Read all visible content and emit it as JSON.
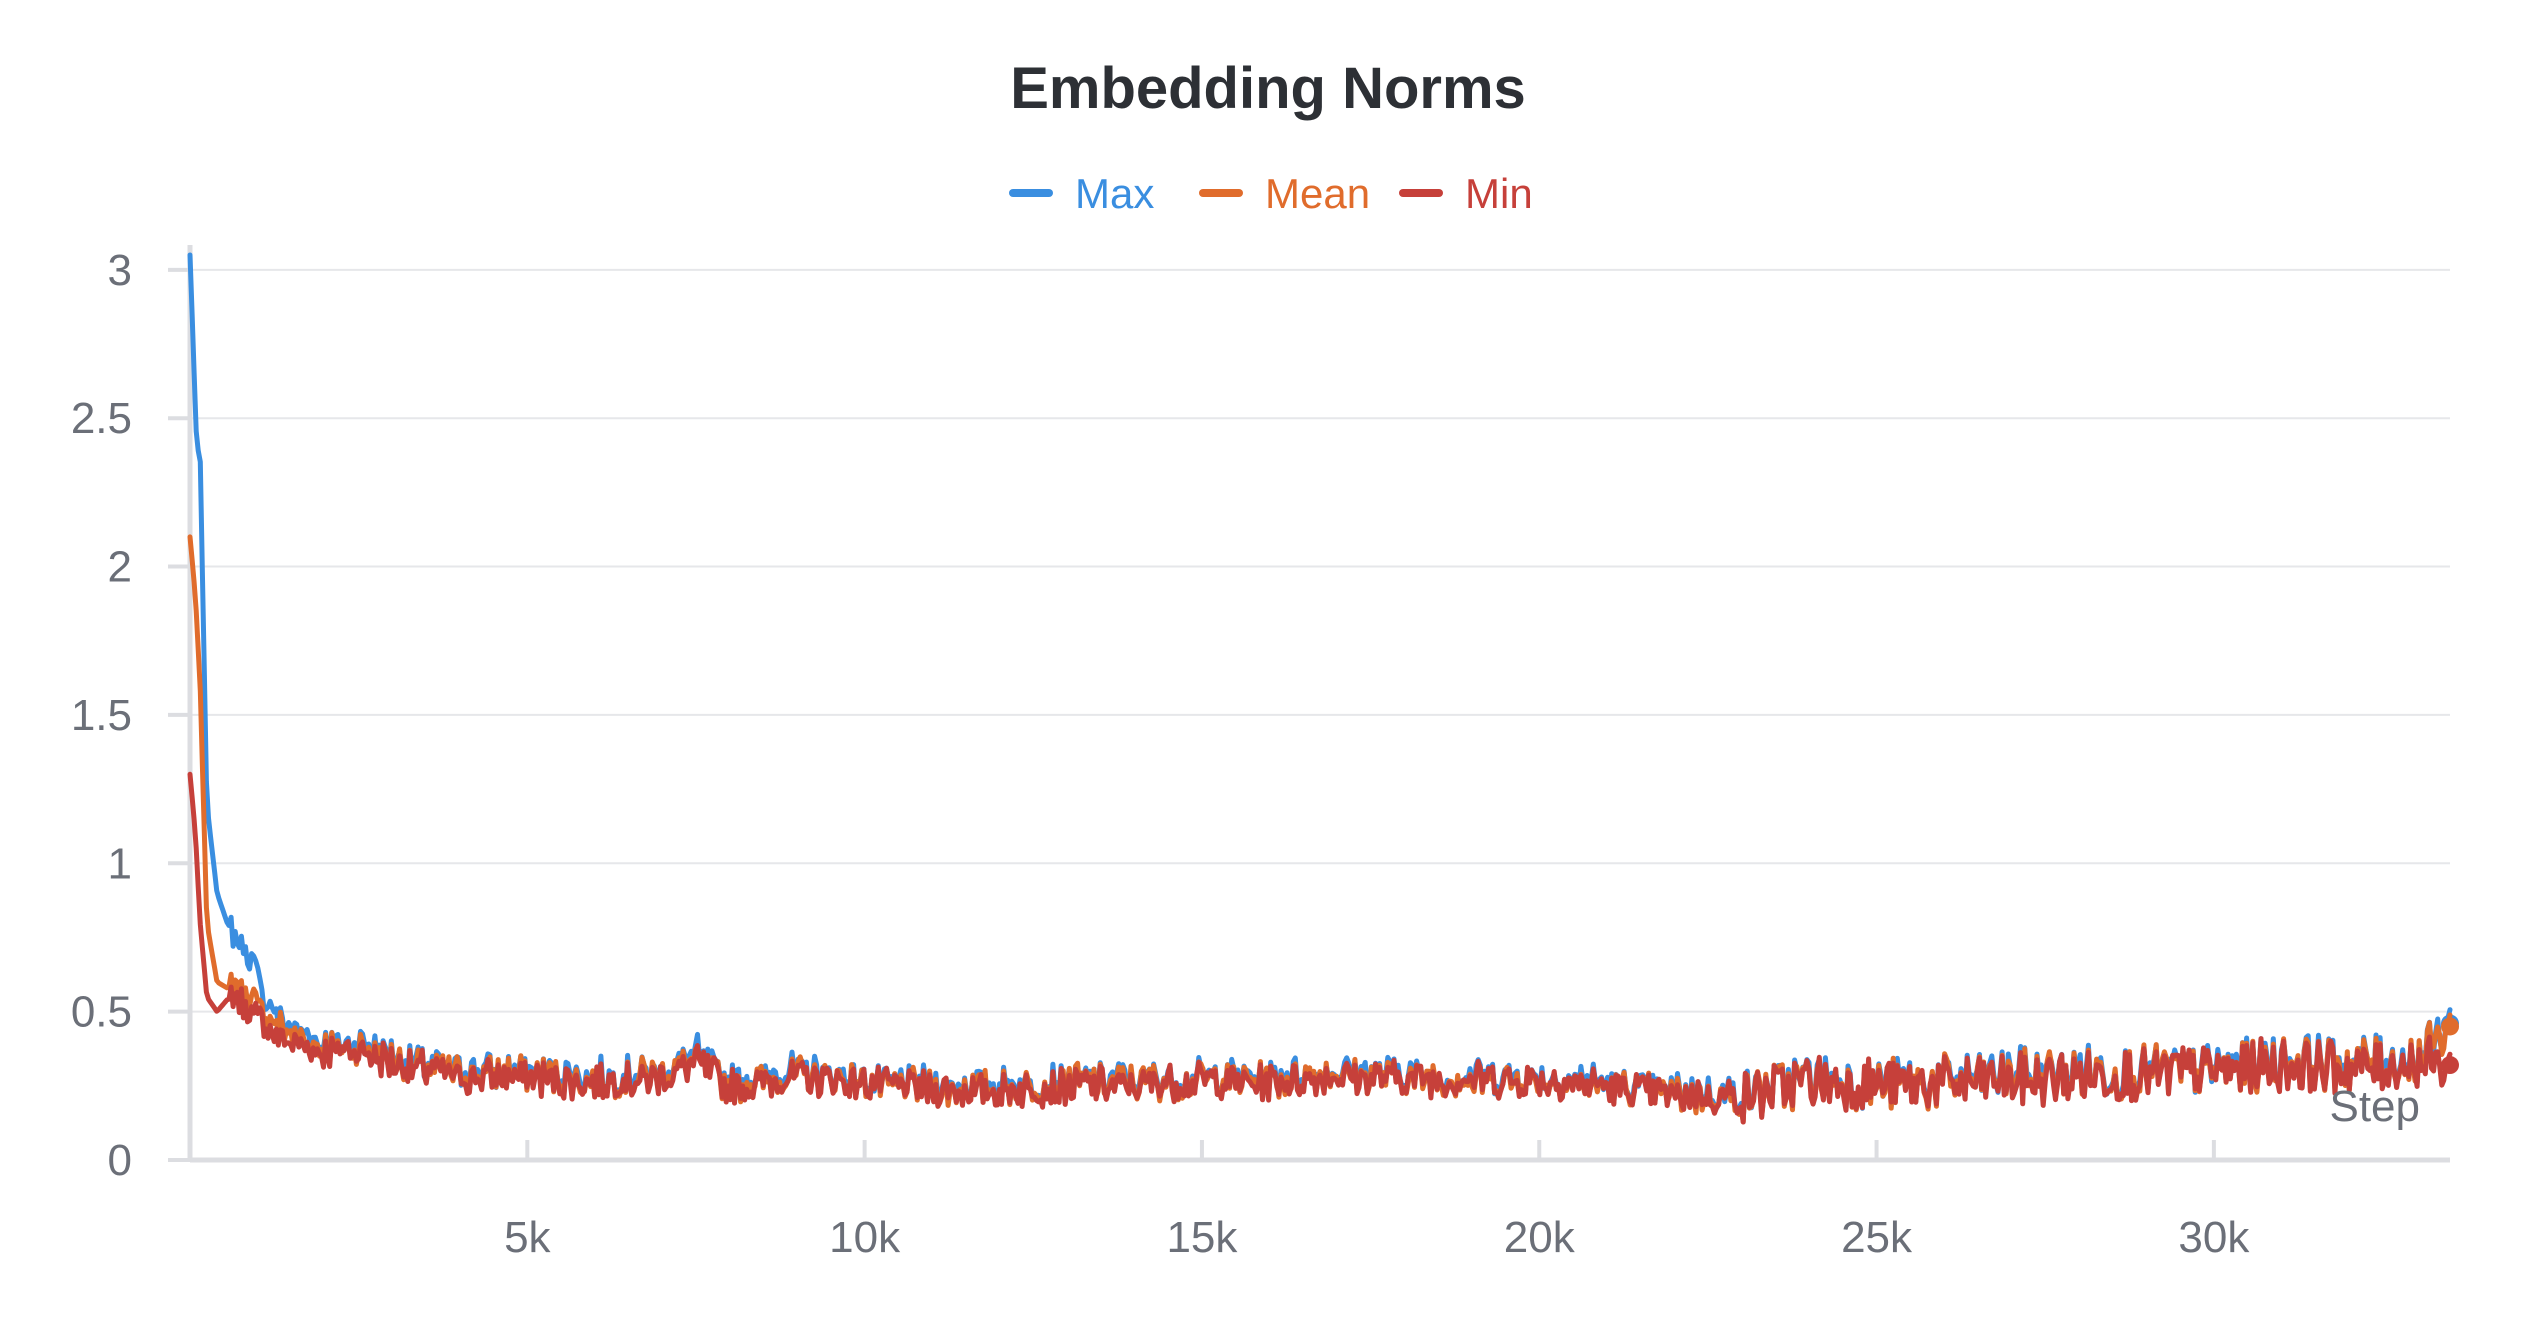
{
  "chart_data": {
    "type": "line",
    "title": "Embedding Norms",
    "xlabel": "Step",
    "ylabel": "",
    "xlim": [
      0,
      33500
    ],
    "ylim": [
      0,
      3.05
    ],
    "x_ticks": [
      5000,
      10000,
      15000,
      20000,
      25000,
      30000
    ],
    "x_tick_labels": [
      "5k",
      "10k",
      "15k",
      "20k",
      "25k",
      "30k"
    ],
    "y_ticks": [
      0,
      0.5,
      1,
      1.5,
      2,
      2.5,
      3
    ],
    "y_tick_labels": [
      "0",
      "0.5",
      "1",
      "1.5",
      "2",
      "2.5",
      "3"
    ],
    "grid": true,
    "legend_position": "top-center",
    "series": [
      {
        "name": "Max",
        "color": "#3a8ee0",
        "x": [
          0,
          100,
          150,
          250,
          400,
          550,
          700,
          900,
          1100,
          1300,
          1600,
          2000,
          2500,
          3000,
          3500,
          4000,
          5000,
          6000,
          7000,
          7500,
          8000,
          9000,
          10000,
          11000,
          12000,
          13000,
          14000,
          15000,
          16000,
          17000,
          18000,
          19000,
          20000,
          21000,
          22000,
          23000,
          24000,
          25000,
          26000,
          27000,
          28000,
          29000,
          30000,
          31000,
          32000,
          33000,
          33500
        ],
        "values": [
          3.05,
          2.4,
          2.38,
          1.2,
          0.9,
          0.8,
          0.75,
          0.68,
          0.55,
          0.48,
          0.43,
          0.4,
          0.4,
          0.36,
          0.32,
          0.3,
          0.3,
          0.28,
          0.3,
          0.36,
          0.26,
          0.3,
          0.27,
          0.25,
          0.25,
          0.27,
          0.27,
          0.28,
          0.28,
          0.3,
          0.29,
          0.28,
          0.28,
          0.26,
          0.23,
          0.22,
          0.28,
          0.26,
          0.27,
          0.29,
          0.3,
          0.3,
          0.31,
          0.34,
          0.33,
          0.34,
          0.46
        ]
      },
      {
        "name": "Mean",
        "color": "#e06c2c",
        "x": [
          0,
          80,
          150,
          250,
          400,
          550,
          700,
          900,
          1100,
          1300,
          1600,
          2000,
          2500,
          3000,
          3500,
          4000,
          5000,
          6000,
          7000,
          7500,
          8000,
          9000,
          10000,
          11000,
          12000,
          13000,
          14000,
          15000,
          16000,
          17000,
          18000,
          19000,
          20000,
          21000,
          22000,
          23000,
          24000,
          25000,
          26000,
          27000,
          28000,
          29000,
          30000,
          31000,
          32000,
          33000,
          33500
        ],
        "values": [
          2.1,
          1.9,
          1.6,
          0.8,
          0.6,
          0.58,
          0.6,
          0.55,
          0.5,
          0.45,
          0.41,
          0.38,
          0.38,
          0.34,
          0.31,
          0.29,
          0.29,
          0.27,
          0.29,
          0.34,
          0.25,
          0.29,
          0.26,
          0.24,
          0.24,
          0.26,
          0.26,
          0.27,
          0.27,
          0.29,
          0.28,
          0.27,
          0.27,
          0.25,
          0.22,
          0.21,
          0.27,
          0.25,
          0.26,
          0.28,
          0.29,
          0.29,
          0.3,
          0.33,
          0.32,
          0.33,
          0.45
        ]
      },
      {
        "name": "Min",
        "color": "#c6403a",
        "x": [
          0,
          80,
          150,
          250,
          400,
          550,
          700,
          900,
          1100,
          1300,
          1600,
          2000,
          2500,
          3000,
          3500,
          4000,
          5000,
          6000,
          7000,
          7500,
          8000,
          9000,
          10000,
          11000,
          12000,
          13000,
          14000,
          15000,
          16000,
          17000,
          18000,
          19000,
          20000,
          21000,
          22000,
          23000,
          24000,
          25000,
          26000,
          27000,
          28000,
          29000,
          30000,
          31000,
          32000,
          33000,
          33500
        ],
        "values": [
          1.3,
          1.1,
          0.8,
          0.55,
          0.5,
          0.54,
          0.55,
          0.5,
          0.46,
          0.42,
          0.39,
          0.36,
          0.37,
          0.33,
          0.3,
          0.28,
          0.28,
          0.26,
          0.28,
          0.33,
          0.24,
          0.28,
          0.26,
          0.24,
          0.23,
          0.25,
          0.25,
          0.27,
          0.26,
          0.28,
          0.28,
          0.27,
          0.27,
          0.25,
          0.22,
          0.21,
          0.27,
          0.25,
          0.26,
          0.27,
          0.28,
          0.29,
          0.3,
          0.32,
          0.31,
          0.33,
          0.32
        ]
      }
    ]
  }
}
